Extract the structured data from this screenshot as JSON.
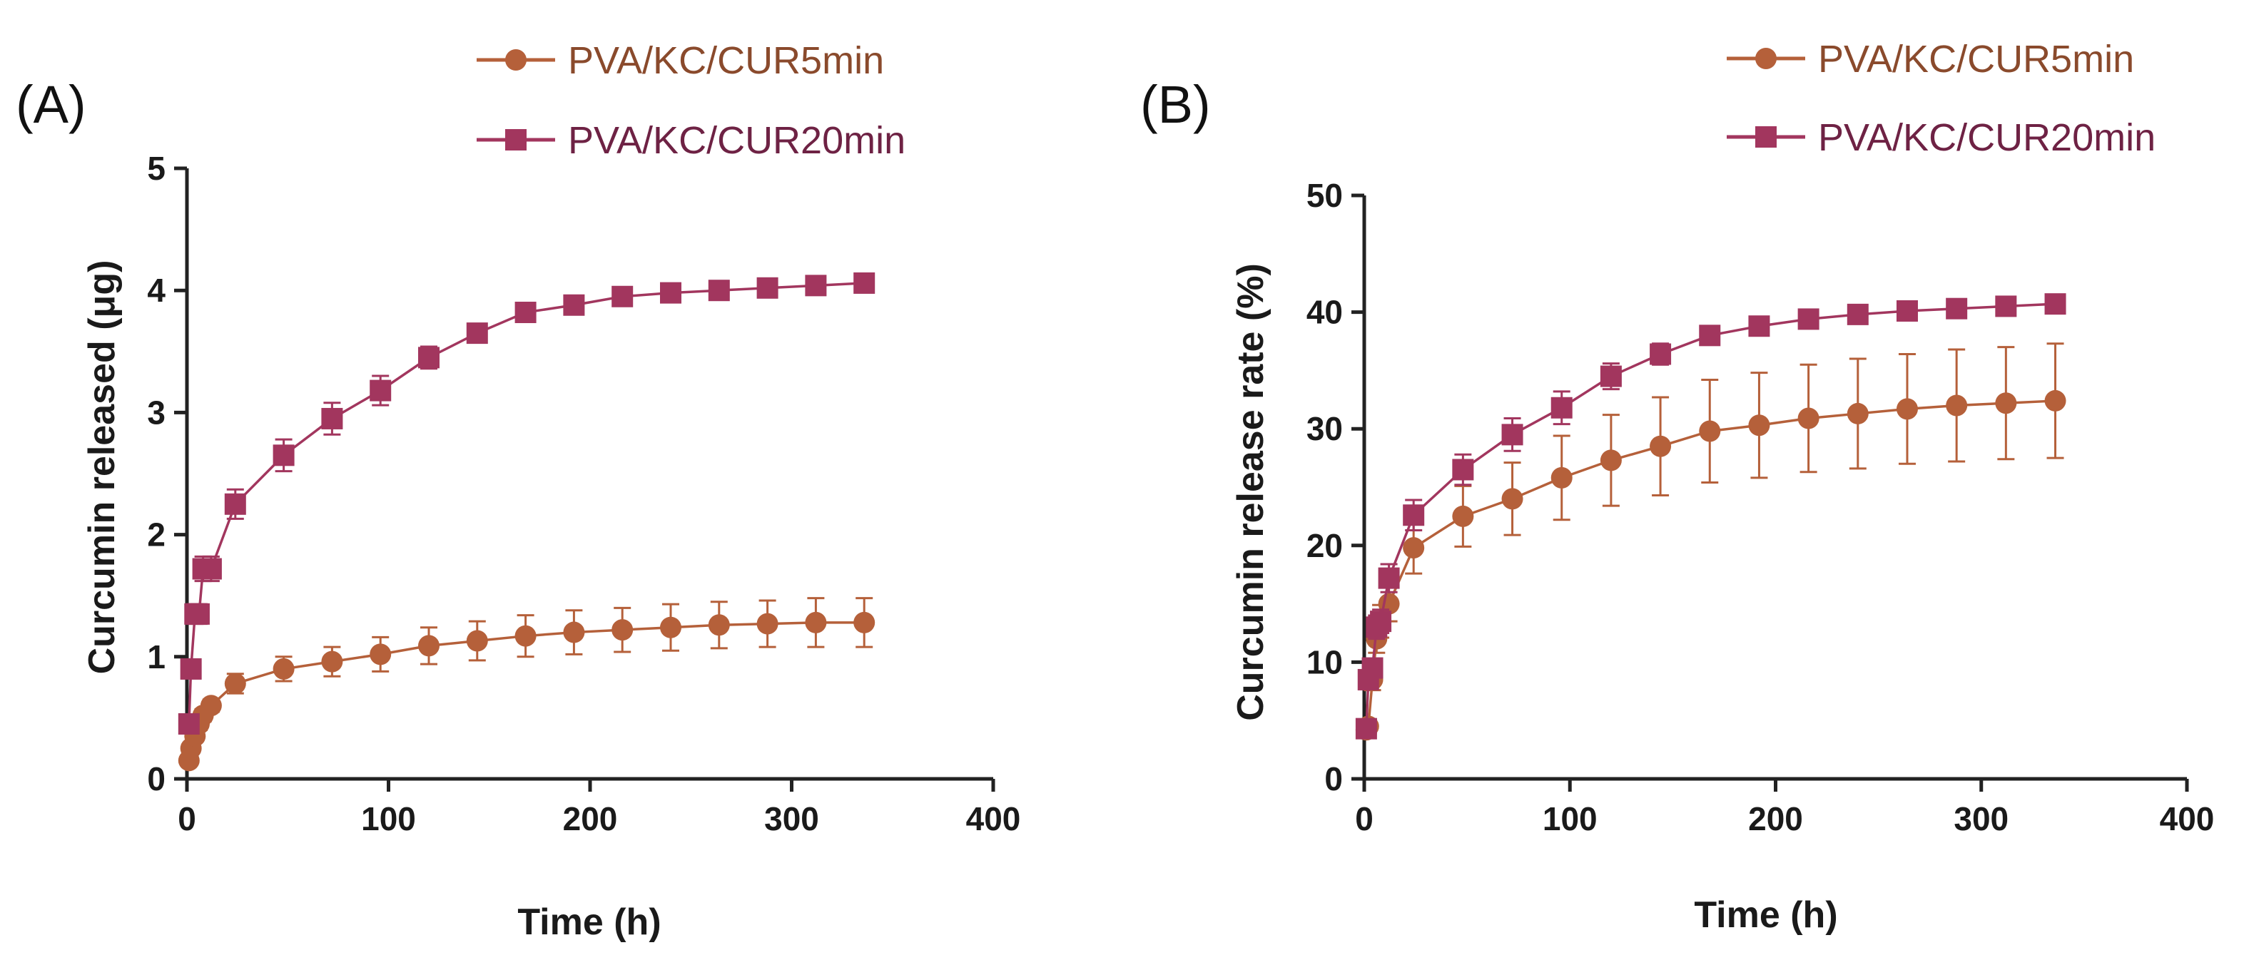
{
  "chart_data": [
    {
      "panel_label": "(A)",
      "type": "line",
      "title": "",
      "xlabel": "Time (h)",
      "ylabel": "Curcumin released (μg)",
      "xlim": [
        0,
        400
      ],
      "ylim": [
        0,
        5
      ],
      "xticks": [
        "0",
        "100",
        "200",
        "300",
        "400"
      ],
      "yticks": [
        "0",
        "1",
        "2",
        "3",
        "4",
        "5"
      ],
      "grid": false,
      "legend_position": "top",
      "x": [
        1,
        2,
        4,
        6,
        8,
        12,
        24,
        48,
        72,
        96,
        120,
        144,
        168,
        192,
        216,
        240,
        264,
        288,
        312,
        336
      ],
      "series": [
        {
          "name": "PVA/KC/CUR5min",
          "marker": "circle",
          "color": "#b5603a",
          "values": [
            0.15,
            0.25,
            0.35,
            0.45,
            0.52,
            0.6,
            0.78,
            0.9,
            0.96,
            1.02,
            1.09,
            1.13,
            1.17,
            1.2,
            1.22,
            1.24,
            1.26,
            1.27,
            1.28,
            1.28
          ],
          "errors": [
            0.02,
            0.03,
            0.04,
            0.05,
            0.05,
            0.05,
            0.08,
            0.1,
            0.12,
            0.14,
            0.15,
            0.16,
            0.17,
            0.18,
            0.18,
            0.19,
            0.19,
            0.19,
            0.2,
            0.2
          ]
        },
        {
          "name": "PVA/KC/CUR20min",
          "marker": "square",
          "color": "#a2365e",
          "values": [
            0.45,
            0.9,
            1.35,
            1.35,
            1.72,
            1.72,
            2.25,
            2.65,
            2.95,
            3.18,
            3.45,
            3.65,
            3.82,
            3.88,
            3.95,
            3.98,
            4.0,
            4.02,
            4.04,
            4.06
          ],
          "errors": [
            0.05,
            0.06,
            0.08,
            0.08,
            0.1,
            0.1,
            0.12,
            0.13,
            0.13,
            0.12,
            0.09,
            0.07,
            0.05,
            0.05,
            0.05,
            0.05,
            0.05,
            0.05,
            0.05,
            0.05
          ]
        }
      ]
    },
    {
      "panel_label": "(B)",
      "type": "line",
      "title": "",
      "xlabel": "Time (h)",
      "ylabel": "Curcumin release rate (%)",
      "xlim": [
        0,
        400
      ],
      "ylim": [
        0,
        50
      ],
      "xticks": [
        "0",
        "100",
        "200",
        "300",
        "400"
      ],
      "yticks": [
        "0",
        "10",
        "20",
        "30",
        "40",
        "50"
      ],
      "grid": false,
      "legend_position": "top-right",
      "x": [
        1,
        2,
        4,
        6,
        8,
        12,
        24,
        48,
        72,
        96,
        120,
        144,
        168,
        192,
        216,
        240,
        264,
        288,
        312,
        336
      ],
      "series": [
        {
          "name": "PVA/KC/CUR5min",
          "marker": "circle",
          "color": "#b5603a",
          "values": [
            4.2,
            4.5,
            8.5,
            12.0,
            13.5,
            15.0,
            19.8,
            22.5,
            24.0,
            25.8,
            27.3,
            28.5,
            29.8,
            30.3,
            30.9,
            31.3,
            31.7,
            32.0,
            32.2,
            32.4
          ],
          "errors": [
            0.5,
            0.6,
            0.9,
            1.2,
            1.4,
            1.5,
            2.2,
            2.6,
            3.1,
            3.6,
            3.9,
            4.2,
            4.4,
            4.5,
            4.6,
            4.7,
            4.7,
            4.8,
            4.8,
            4.9
          ]
        },
        {
          "name": "PVA/KC/CUR20min",
          "marker": "square",
          "color": "#a2365e",
          "values": [
            4.3,
            8.5,
            9.5,
            13.0,
            13.5,
            17.2,
            22.6,
            26.5,
            29.5,
            31.8,
            34.5,
            36.4,
            38.0,
            38.8,
            39.4,
            39.8,
            40.1,
            40.3,
            40.5,
            40.7
          ],
          "errors": [
            0.4,
            0.6,
            0.8,
            1.0,
            1.0,
            1.2,
            1.3,
            1.3,
            1.4,
            1.4,
            1.1,
            0.9,
            0.7,
            0.6,
            0.5,
            0.5,
            0.5,
            0.5,
            0.5,
            0.5
          ]
        }
      ]
    }
  ]
}
